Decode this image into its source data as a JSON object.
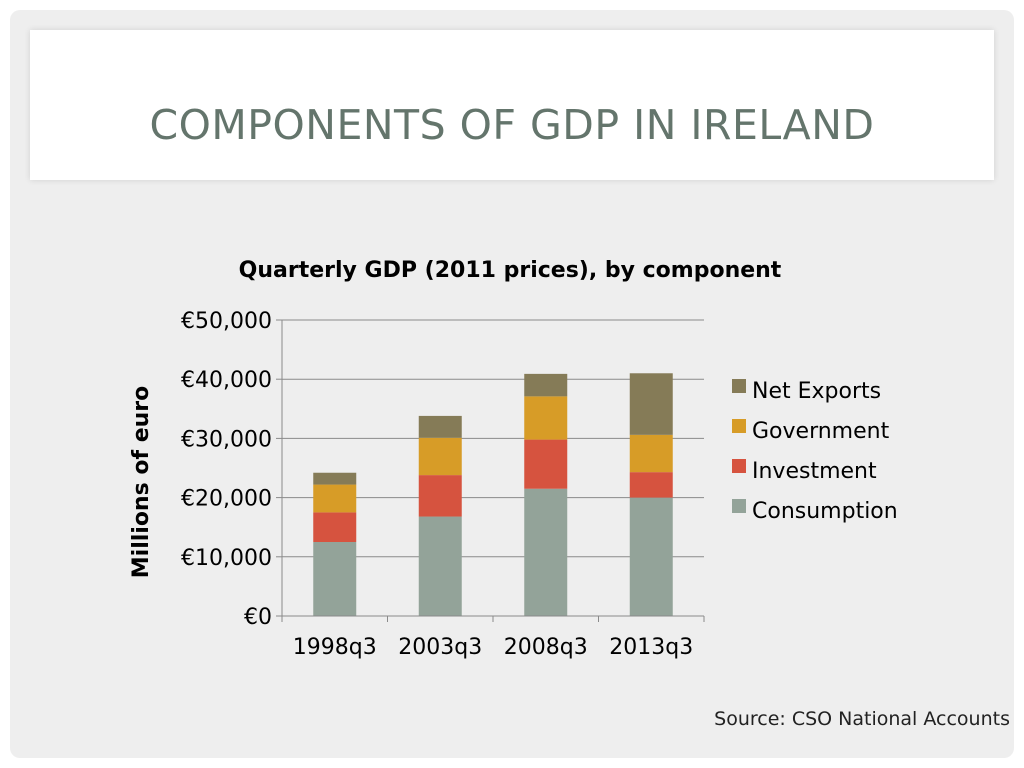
{
  "slide": {
    "title": "COMPONENTS OF GDP IN IRELAND",
    "source": "Source: CSO National Accounts"
  },
  "chart_data": {
    "type": "bar",
    "stacked": true,
    "title": "Quarterly GDP (2011 prices), by component",
    "xlabel": "",
    "ylabel": "Millions of euro",
    "categories": [
      "1998q3",
      "2003q3",
      "2008q3",
      "2013q3"
    ],
    "ylim": [
      0,
      50000
    ],
    "yticks": [
      "€0",
      "€10,000",
      "€20,000",
      "€30,000",
      "€40,000",
      "€50,000"
    ],
    "yticks_values": [
      0,
      10000,
      20000,
      30000,
      40000,
      50000
    ],
    "grid": true,
    "legend_position": "right",
    "series": [
      {
        "name": "Consumption",
        "color": "#93a399",
        "values": [
          12500,
          16800,
          21500,
          20000
        ]
      },
      {
        "name": "Investment",
        "color": "#d6533f",
        "values": [
          5000,
          7000,
          8300,
          4300
        ]
      },
      {
        "name": "Government",
        "color": "#d79c27",
        "values": [
          4700,
          6300,
          7300,
          6300
        ]
      },
      {
        "name": "Net Exports",
        "color": "#857b57",
        "values": [
          2000,
          3700,
          3800,
          10400
        ]
      }
    ]
  }
}
